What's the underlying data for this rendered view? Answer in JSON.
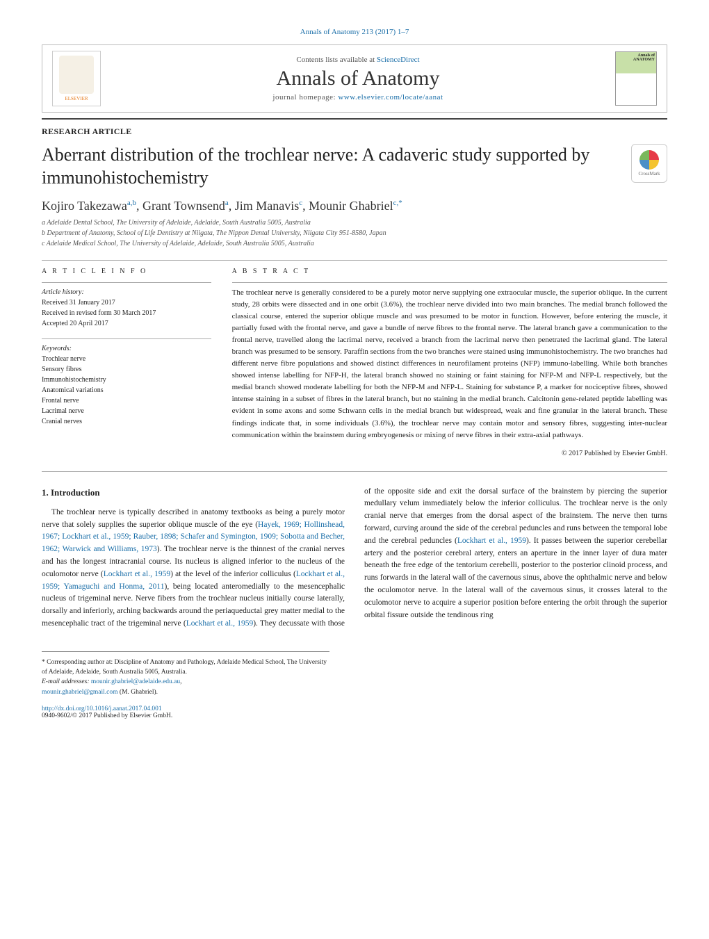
{
  "header": {
    "citation": "Annals of Anatomy 213 (2017) 1–7",
    "contents_line_pre": "Contents lists available at ",
    "contents_line_link": "ScienceDirect",
    "journal_title": "Annals of Anatomy",
    "homepage_pre": "journal homepage: ",
    "homepage_link": "www.elsevier.com/locate/aanat",
    "elsevier_label": "ELSEVIER",
    "cover_label": "Annals of ANATOMY"
  },
  "article": {
    "type": "RESEARCH ARTICLE",
    "title": "Aberrant distribution of the trochlear nerve: A cadaveric study supported by immunohistochemistry",
    "crossmark_label": "CrossMark",
    "authors_html": "Kojiro Takezawa",
    "sup_a": "a,b",
    "author2": ", Grant Townsend",
    "sup_b": "a",
    "author3": ", Jim Manavis",
    "sup_c": "c",
    "author4": ", Mounir Ghabriel",
    "sup_d": "c,*",
    "affiliations": [
      "a Adelaide Dental School, The University of Adelaide, Adelaide, South Australia 5005, Australia",
      "b Department of Anatomy, School of Life Dentistry at Niigata, The Nippon Dental University, Niigata City 951-8580, Japan",
      "c Adelaide Medical School, The University of Adelaide, Adelaide, South Australia 5005, Australia"
    ]
  },
  "info": {
    "heading": "A R T I C L E   I N F O",
    "history_label": "Article history:",
    "history": [
      "Received 31 January 2017",
      "Received in revised form 30 March 2017",
      "Accepted 20 April 2017"
    ],
    "keywords_label": "Keywords:",
    "keywords": [
      "Trochlear nerve",
      "Sensory fibres",
      "Immunohistochemistry",
      "Anatomical variations",
      "Frontal nerve",
      "Lacrimal nerve",
      "Cranial nerves"
    ]
  },
  "abstract": {
    "heading": "A B S T R A C T",
    "text": "The trochlear nerve is generally considered to be a purely motor nerve supplying one extraocular muscle, the superior oblique. In the current study, 28 orbits were dissected and in one orbit (3.6%), the trochlear nerve divided into two main branches. The medial branch followed the classical course, entered the superior oblique muscle and was presumed to be motor in function. However, before entering the muscle, it partially fused with the frontal nerve, and gave a bundle of nerve fibres to the frontal nerve. The lateral branch gave a communication to the frontal nerve, travelled along the lacrimal nerve, received a branch from the lacrimal nerve then penetrated the lacrimal gland. The lateral branch was presumed to be sensory. Paraffin sections from the two branches were stained using immunohistochemistry. The two branches had different nerve fibre populations and showed distinct differences in neurofilament proteins (NFP) immuno-labelling. While both branches showed intense labelling for NFP-H, the lateral branch showed no staining or faint staining for NFP-M and NFP-L respectively, but the medial branch showed moderate labelling for both the NFP-M and NFP-L. Staining for substance P, a marker for nociceptive fibres, showed intense staining in a subset of fibres in the lateral branch, but no staining in the medial branch. Calcitonin gene-related peptide labelling was evident in some axons and some Schwann cells in the medial branch but widespread, weak and fine granular in the lateral branch. These findings indicate that, in some individuals (3.6%), the trochlear nerve may contain motor and sensory fibres, suggesting inter-nuclear communication within the brainstem during embryogenesis or mixing of nerve fibres in their extra-axial pathways.",
    "copyright": "© 2017 Published by Elsevier GmbH."
  },
  "body": {
    "intro_heading": "1.  Introduction",
    "intro_p1_a": "The trochlear nerve is typically described in anatomy textbooks as being a purely motor nerve that solely supplies the superior oblique muscle of the eye (",
    "intro_p1_link": "Hayek, 1969; Hollinshead, 1967; Lockhart et al., 1959; Rauber, 1898; Schafer and Symington, 1909; Sobotta and Becher, 1962; Warwick and Williams, 1973",
    "intro_p1_b": "). The trochlear nerve is the thinnest of the cranial nerves and has the longest intracranial course. Its nucleus is aligned inferior to the nucleus of the oculomotor nerve (",
    "intro_p1_link2": "Lockhart et al., 1959",
    "intro_p1_c": ") at the level of the inferior colliculus (",
    "intro_p1_link3": "Lockhart et al., 1959; Yamaguchi and Honma, 2011",
    "intro_p1_d": "), being located anteromedially to the mesencephalic nucleus of trigeminal nerve. Nerve fibers from the trochlear nucleus",
    "intro_p2_a": "initially course laterally, dorsally and inferiorly, arching backwards around the periaqueductal grey matter medial to the mesencephalic tract of the trigeminal nerve (",
    "intro_p2_link": "Lockhart et al., 1959",
    "intro_p2_b": "). They decussate with those of the opposite side and exit the dorsal surface of the brainstem by piercing the superior medullary velum immediately below the inferior colliculus. The trochlear nerve is the only cranial nerve that emerges from the dorsal aspect of the brainstem. The nerve then turns forward, curving around the side of the cerebral peduncles and runs between the temporal lobe and the cerebral peduncles (",
    "intro_p2_link2": "Lockhart et al., 1959",
    "intro_p2_c": "). It passes between the superior cerebellar artery and the posterior cerebral artery, enters an aperture in the inner layer of dura mater beneath the free edge of the tentorium cerebelli, posterior to the posterior clinoid process, and runs forwards in the lateral wall of the cavernous sinus, above the ophthalmic nerve and below the oculomotor nerve. In the lateral wall of the cavernous sinus, it crosses lateral to the oculomotor nerve to acquire a superior position before entering the orbit through the superior orbital fissure outside the tendinous ring"
  },
  "footer": {
    "corresponding": "* Corresponding author at: Discipline of Anatomy and Pathology, Adelaide Medical School, The University of Adelaide, Adelaide, South Australia 5005, Australia.",
    "email_label": "E-mail addresses: ",
    "email1": "mounir.ghabriel@adelaide.edu.au",
    "email_sep": ", ",
    "email2": "mounir.ghabriel@gmail.com",
    "email_suffix": " (M. Ghabriel).",
    "doi": "http://dx.doi.org/10.1016/j.aanat.2017.04.001",
    "issn_line": "0940-9602/© 2017 Published by Elsevier GmbH."
  },
  "colors": {
    "link": "#1a6ea8",
    "orange": "#e67817"
  }
}
